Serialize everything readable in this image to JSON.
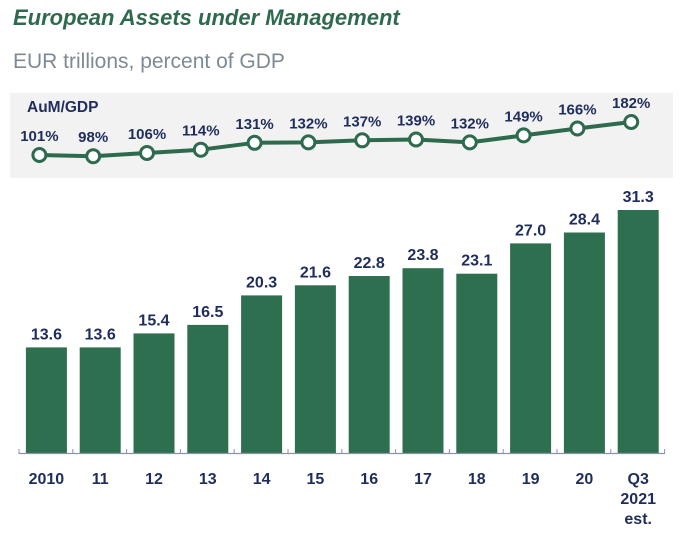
{
  "title": "European Assets under Management",
  "subtitle": "EUR trillions, percent of GDP",
  "chart_data": [
    {
      "type": "line",
      "title": "AuM/GDP",
      "categories": [
        "2010",
        "11",
        "12",
        "13",
        "14",
        "15",
        "16",
        "17",
        "18",
        "19",
        "20",
        "Q3 2021 est."
      ],
      "values": [
        101,
        98,
        106,
        114,
        131,
        132,
        137,
        139,
        132,
        149,
        166,
        182
      ],
      "data_labels": [
        "101%",
        "98%",
        "106%",
        "114%",
        "131%",
        "132%",
        "137%",
        "139%",
        "132%",
        "149%",
        "166%",
        "182%"
      ],
      "unit": "percent of GDP",
      "marker": "hollow-circle",
      "color": "#2e6b4e",
      "background": "#f2f2f2",
      "grid": false
    },
    {
      "type": "bar",
      "title": "European Assets under Management",
      "xlabel": "",
      "ylabel": "EUR trillions",
      "categories": [
        "2010",
        "11",
        "12",
        "13",
        "14",
        "15",
        "16",
        "17",
        "18",
        "19",
        "20",
        "Q3 2021 est."
      ],
      "category_lines": [
        [
          "2010"
        ],
        [
          "11"
        ],
        [
          "12"
        ],
        [
          "13"
        ],
        [
          "14"
        ],
        [
          "15"
        ],
        [
          "16"
        ],
        [
          "17"
        ],
        [
          "18"
        ],
        [
          "19"
        ],
        [
          "20"
        ],
        [
          "Q3",
          "2021",
          "est."
        ]
      ],
      "values": [
        13.6,
        13.6,
        15.4,
        16.5,
        20.3,
        21.6,
        22.8,
        23.8,
        23.1,
        27.0,
        28.4,
        31.3
      ],
      "data_labels": [
        "13.6",
        "13.6",
        "15.4",
        "16.5",
        "20.3",
        "21.6",
        "22.8",
        "23.8",
        "23.1",
        "27.0",
        "28.4",
        "31.3"
      ],
      "ylim": [
        0,
        31.3
      ],
      "color": "#2e6f4f",
      "label_color": "#1f2d5c",
      "grid": false
    }
  ]
}
